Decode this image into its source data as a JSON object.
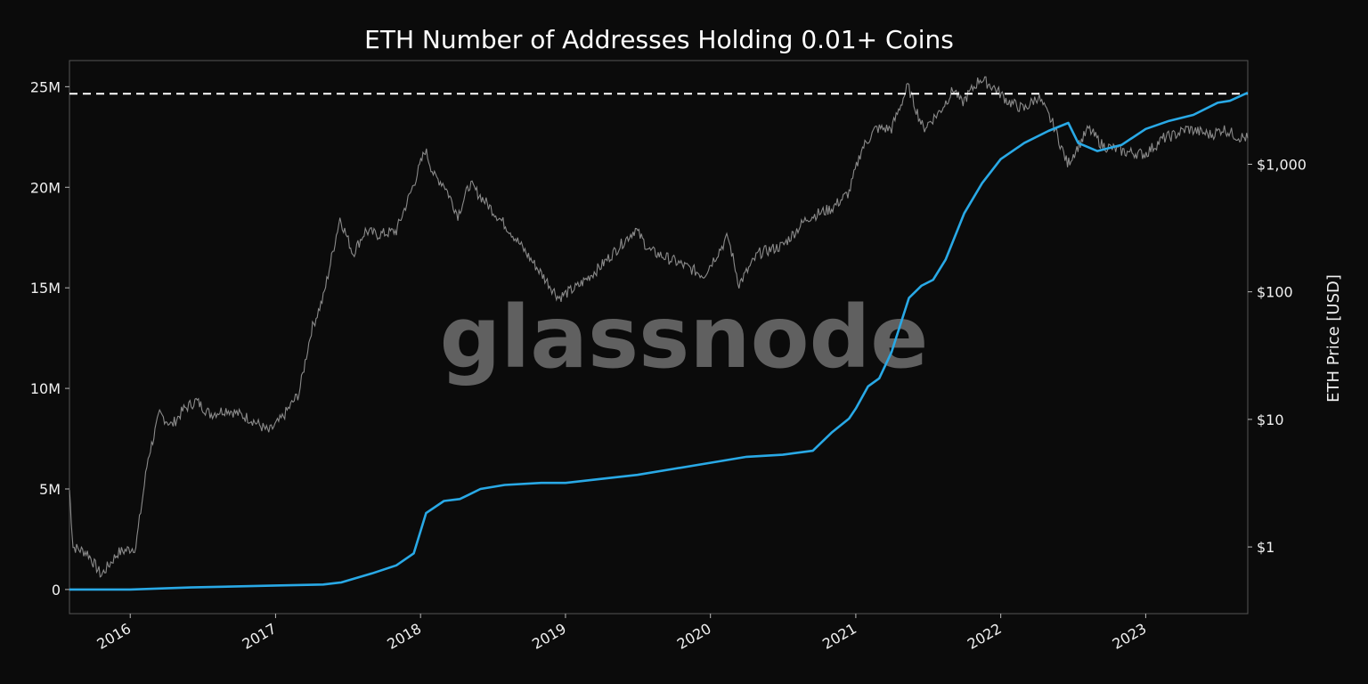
{
  "chart_data": {
    "type": "line",
    "title": "ETH Number of Addresses Holding 0.01+ Coins",
    "watermark": "glassnode",
    "y_label_right": "ETH Price [USD]",
    "x_ticks": [
      "2016",
      "2017",
      "2018",
      "2019",
      "2020",
      "2021",
      "2022",
      "2023"
    ],
    "y_left_ticks": [
      {
        "value": 0,
        "label": "0"
      },
      {
        "value": 5000000,
        "label": "5M"
      },
      {
        "value": 10000000,
        "label": "10M"
      },
      {
        "value": 15000000,
        "label": "15M"
      },
      {
        "value": 20000000,
        "label": "20M"
      },
      {
        "value": 25000000,
        "label": "25M"
      }
    ],
    "y_right_ticks": [
      {
        "value": 1,
        "label": "$1"
      },
      {
        "value": 10,
        "label": "$10"
      },
      {
        "value": 100,
        "label": "$100"
      },
      {
        "value": 1000,
        "label": "$1,000"
      }
    ],
    "y_left_range": [
      -1200000,
      26300000
    ],
    "y_right_range_log": [
      0.3,
      6500
    ],
    "x_range": [
      "2015-08-01",
      "2023-09-15"
    ],
    "ath_line_value": 24650000,
    "colors": {
      "addresses": "#29a9e6",
      "price": "#8a8a8a",
      "ath": "#ffffff",
      "frame": "#555555"
    },
    "series": [
      {
        "key": "addresses",
        "axis": "left",
        "x": [
          "2015-08-01",
          "2016-01-01",
          "2016-06-01",
          "2017-01-01",
          "2017-05-01",
          "2017-06-15",
          "2017-09-01",
          "2017-11-01",
          "2017-12-15",
          "2018-01-15",
          "2018-03-01",
          "2018-04-10",
          "2018-05-01",
          "2018-06-01",
          "2018-08-01",
          "2018-11-01",
          "2019-01-01",
          "2019-04-01",
          "2019-07-01",
          "2019-10-01",
          "2020-01-01",
          "2020-04-01",
          "2020-07-01",
          "2020-09-15",
          "2020-11-01",
          "2020-12-15",
          "2021-01-01",
          "2021-02-01",
          "2021-03-01",
          "2021-04-01",
          "2021-05-15",
          "2021-06-15",
          "2021-07-15",
          "2021-08-15",
          "2021-10-01",
          "2021-11-15",
          "2022-01-01",
          "2022-03-01",
          "2022-05-01",
          "2022-06-20",
          "2022-07-15",
          "2022-09-01",
          "2022-11-01",
          "2023-01-01",
          "2023-03-01",
          "2023-05-01",
          "2023-07-01",
          "2023-08-01",
          "2023-09-15"
        ],
        "y": [
          0,
          0,
          100000,
          200000,
          250000,
          350000,
          800000,
          1200000,
          1800000,
          3800000,
          4400000,
          4500000,
          4700000,
          5000000,
          5200000,
          5300000,
          5300000,
          5500000,
          5700000,
          6000000,
          6300000,
          6600000,
          6700000,
          6900000,
          7800000,
          8500000,
          9000000,
          10100000,
          10500000,
          11800000,
          14500000,
          15100000,
          15400000,
          16400000,
          18700000,
          20200000,
          21400000,
          22200000,
          22800000,
          23200000,
          22200000,
          21800000,
          22100000,
          22900000,
          23300000,
          23600000,
          24200000,
          24300000,
          24700000
        ]
      },
      {
        "key": "price",
        "axis": "right_log",
        "x": [
          "2015-08-01",
          "2015-08-10",
          "2015-09-15",
          "2015-10-20",
          "2015-12-01",
          "2016-01-15",
          "2016-02-15",
          "2016-03-15",
          "2016-04-15",
          "2016-05-15",
          "2016-06-15",
          "2016-07-20",
          "2016-09-01",
          "2016-11-01",
          "2016-12-15",
          "2017-01-15",
          "2017-03-01",
          "2017-04-01",
          "2017-05-01",
          "2017-06-12",
          "2017-07-15",
          "2017-08-15",
          "2017-09-15",
          "2017-11-01",
          "2017-12-15",
          "2018-01-13",
          "2018-02-05",
          "2018-03-01",
          "2018-04-05",
          "2018-05-05",
          "2018-06-15",
          "2018-08-15",
          "2018-09-15",
          "2018-11-25",
          "2018-12-15",
          "2019-02-01",
          "2019-04-01",
          "2019-06-26",
          "2019-08-01",
          "2019-10-01",
          "2019-12-15",
          "2020-02-14",
          "2020-03-13",
          "2020-05-01",
          "2020-07-01",
          "2020-09-01",
          "2020-11-01",
          "2020-12-15",
          "2021-01-15",
          "2021-02-20",
          "2021-04-01",
          "2021-05-12",
          "2021-06-20",
          "2021-08-01",
          "2021-09-05",
          "2021-09-25",
          "2021-11-10",
          "2021-12-15",
          "2022-01-20",
          "2022-03-01",
          "2022-04-05",
          "2022-05-15",
          "2022-06-18",
          "2022-08-10",
          "2022-09-15",
          "2022-11-10",
          "2022-12-30",
          "2023-02-15",
          "2023-03-15",
          "2023-04-15",
          "2023-06-15",
          "2023-07-15",
          "2023-08-20",
          "2023-09-15"
        ],
        "y": [
          2.8,
          1.0,
          0.9,
          0.6,
          0.9,
          1.0,
          5,
          11,
          9,
          12,
          14,
          11,
          12,
          10,
          8,
          10,
          16,
          50,
          90,
          380,
          200,
          300,
          280,
          300,
          700,
          1300,
          800,
          700,
          400,
          700,
          500,
          300,
          220,
          110,
          90,
          110,
          160,
          310,
          210,
          175,
          135,
          270,
          115,
          200,
          230,
          380,
          450,
          600,
          1300,
          1900,
          1900,
          4100,
          1900,
          2600,
          3900,
          3000,
          4700,
          4000,
          3100,
          2700,
          3400,
          2000,
          1000,
          1900,
          1400,
          1250,
          1200,
          1600,
          1700,
          1900,
          1700,
          1900,
          1650,
          1600
        ]
      }
    ]
  }
}
